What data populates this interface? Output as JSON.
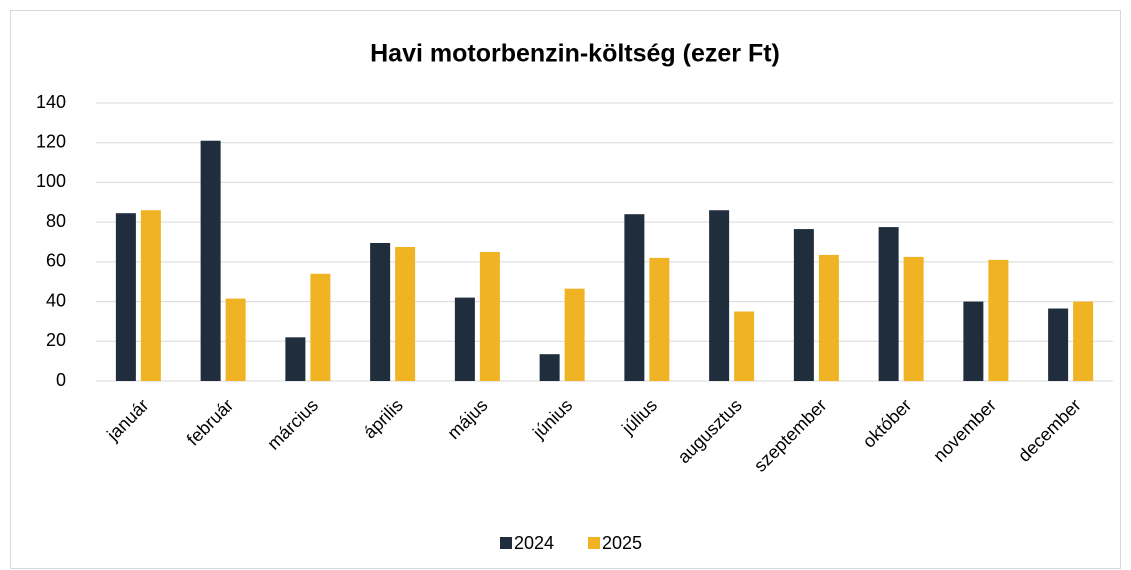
{
  "chart_data": {
    "type": "bar",
    "title": "Havi motorbenzin-költség (ezer Ft)",
    "categories": [
      "január",
      "február",
      "március",
      "április",
      "május",
      "június",
      "július",
      "augusztus",
      "szeptember",
      "október",
      "november",
      "december"
    ],
    "series": [
      {
        "name": "2024",
        "color": "#1f2d3d",
        "values": [
          84.5,
          121,
          22,
          69.5,
          42,
          13.5,
          84,
          86,
          76.5,
          77.5,
          40,
          36.5
        ]
      },
      {
        "name": "2025",
        "color": "#f0b323",
        "values": [
          86,
          41.5,
          54,
          67.5,
          65,
          46.5,
          62,
          35,
          63.5,
          62.5,
          61,
          40
        ]
      }
    ],
    "ylim": [
      0,
      140
    ],
    "yticks": [
      0,
      20,
      40,
      60,
      80,
      100,
      120,
      140
    ],
    "grid": true,
    "legend": "bottom"
  }
}
